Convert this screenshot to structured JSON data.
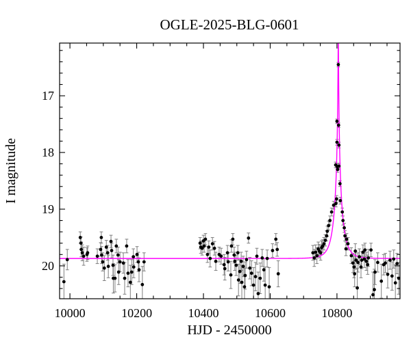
{
  "chart_data": {
    "type": "scatter",
    "title": "OGLE-2025-BLG-0601",
    "xlabel": "HJD - 2450000",
    "ylabel": "I magnitude",
    "x_left": 9969,
    "x_right": 10989,
    "y_top_mag": 16.07,
    "y_bottom_mag": 20.58,
    "y_axis_inverted": true,
    "x_major_ticks": [
      10000,
      10200,
      10400,
      10600,
      10800
    ],
    "x_minor_tick_step": 50,
    "y_major_ticks": [
      17,
      18,
      19,
      20
    ],
    "y_minor_tick_step": 0.2,
    "grid": false,
    "legend": "none",
    "background_color": "#ffffff",
    "frame_color": "#000000",
    "model_curve": {
      "model": "paczynski-point-lens",
      "t0": 10804,
      "tE": 24,
      "u0": 0.028,
      "baseline_mag": 19.87,
      "peak_mag_model": 15.99,
      "color": "#ff00ff"
    },
    "series": [
      {
        "name": "OGLE I-band photometry",
        "marker": "filled-circle",
        "marker_color": "#000000",
        "errorbar_color": "#7d7d7d",
        "points": [
          [
            9982,
            20.28,
            0.31
          ],
          [
            9992,
            19.89,
            0.18
          ],
          [
            10031,
            19.5,
            0.1
          ],
          [
            10033,
            19.6,
            0.11
          ],
          [
            10034,
            19.71,
            0.13
          ],
          [
            10037,
            19.77,
            0.14
          ],
          [
            10041,
            19.83,
            0.16
          ],
          [
            10051,
            19.8,
            0.12
          ],
          [
            10053,
            19.77,
            0.12
          ],
          [
            10082,
            19.83,
            0.13
          ],
          [
            10092,
            19.71,
            0.12
          ],
          [
            10094,
            19.5,
            0.1
          ],
          [
            10095,
            19.81,
            0.15
          ],
          [
            10098,
            19.93,
            0.16
          ],
          [
            10103,
            20.04,
            0.22
          ],
          [
            10109,
            19.67,
            0.12
          ],
          [
            10113,
            19.77,
            0.13
          ],
          [
            10115,
            20.01,
            0.2
          ],
          [
            10123,
            19.57,
            0.11
          ],
          [
            10125,
            19.73,
            0.13
          ],
          [
            10129,
            19.99,
            0.18
          ],
          [
            10130,
            20.22,
            0.26
          ],
          [
            10135,
            20.22,
            0.24
          ],
          [
            10139,
            19.65,
            0.12
          ],
          [
            10144,
            19.81,
            0.14
          ],
          [
            10146,
            20.11,
            0.22
          ],
          [
            10150,
            19.93,
            0.17
          ],
          [
            10160,
            19.95,
            0.18
          ],
          [
            10164,
            20.22,
            0.28
          ],
          [
            10170,
            19.65,
            0.12
          ],
          [
            10174,
            20.13,
            0.24
          ],
          [
            10181,
            20.29,
            0.3
          ],
          [
            10185,
            20.11,
            0.22
          ],
          [
            10190,
            19.84,
            0.14
          ],
          [
            10191,
            20.02,
            0.19
          ],
          [
            10201,
            19.8,
            0.14
          ],
          [
            10205,
            19.93,
            0.17
          ],
          [
            10207,
            20.07,
            0.21
          ],
          [
            10217,
            20.33,
            0.32
          ],
          [
            10222,
            19.93,
            0.16
          ],
          [
            10390,
            19.6,
            0.1
          ],
          [
            10392,
            19.67,
            0.11
          ],
          [
            10396,
            19.69,
            0.12
          ],
          [
            10400,
            19.56,
            0.1
          ],
          [
            10402,
            19.65,
            0.11
          ],
          [
            10406,
            19.53,
            0.1
          ],
          [
            10412,
            19.8,
            0.14
          ],
          [
            10416,
            19.67,
            0.11
          ],
          [
            10420,
            19.87,
            0.15
          ],
          [
            10427,
            19.61,
            0.11
          ],
          [
            10433,
            19.69,
            0.12
          ],
          [
            10437,
            19.92,
            0.16
          ],
          [
            10447,
            19.8,
            0.13
          ],
          [
            10453,
            19.83,
            0.14
          ],
          [
            10462,
            19.98,
            0.18
          ],
          [
            10464,
            20.05,
            0.2
          ],
          [
            10472,
            19.77,
            0.13
          ],
          [
            10474,
            19.93,
            0.16
          ],
          [
            10482,
            20.16,
            0.24
          ],
          [
            10484,
            19.65,
            0.11
          ],
          [
            10488,
            19.53,
            0.1
          ],
          [
            10492,
            19.81,
            0.14
          ],
          [
            10494,
            19.92,
            0.16
          ],
          [
            10498,
            19.99,
            0.18
          ],
          [
            10503,
            19.77,
            0.13
          ],
          [
            10505,
            20.25,
            0.28
          ],
          [
            10509,
            20.1,
            0.21
          ],
          [
            10513,
            19.92,
            0.16
          ],
          [
            10515,
            20.29,
            0.3
          ],
          [
            10519,
            20.01,
            0.18
          ],
          [
            10523,
            20.37,
            0.33
          ],
          [
            10525,
            20.17,
            0.24
          ],
          [
            10529,
            19.89,
            0.15
          ],
          [
            10535,
            19.51,
            0.09
          ],
          [
            10539,
            20.04,
            0.19
          ],
          [
            10544,
            20.13,
            0.22
          ],
          [
            10550,
            20.34,
            0.31
          ],
          [
            10556,
            20.19,
            0.25
          ],
          [
            10560,
            19.83,
            0.14
          ],
          [
            10564,
            20.49,
            0.38
          ],
          [
            10570,
            20.22,
            0.27
          ],
          [
            10576,
            19.86,
            0.15
          ],
          [
            10581,
            20.07,
            0.2
          ],
          [
            10585,
            20.34,
            0.32
          ],
          [
            10591,
            19.87,
            0.15
          ],
          [
            10597,
            20.37,
            0.34
          ],
          [
            10607,
            19.73,
            0.12
          ],
          [
            10617,
            19.53,
            0.1
          ],
          [
            10621,
            19.71,
            0.12
          ],
          [
            10624,
            20.14,
            0.23
          ],
          [
            10728,
            19.77,
            0.13
          ],
          [
            10732,
            19.86,
            0.15
          ],
          [
            10736,
            19.76,
            0.13
          ],
          [
            10740,
            19.82,
            0.14
          ],
          [
            10744,
            19.7,
            0.12
          ],
          [
            10747,
            19.74,
            0.12
          ],
          [
            10751,
            19.77,
            0.13
          ],
          [
            10754,
            19.68,
            0.12
          ],
          [
            10757,
            19.65,
            0.11
          ],
          [
            10761,
            19.61,
            0.11
          ],
          [
            10765,
            19.55,
            0.1
          ],
          [
            10769,
            19.47,
            0.09
          ],
          [
            10771,
            19.39,
            0.09
          ],
          [
            10775,
            19.29,
            0.08
          ],
          [
            10779,
            19.2,
            0.08
          ],
          [
            10784,
            19.05,
            0.07
          ],
          [
            10790,
            18.93,
            0.07
          ],
          [
            10797,
            18.9,
            0.06
          ],
          [
            10796,
            18.22,
            0.05
          ],
          [
            10799,
            18.82,
            0.06
          ],
          [
            10800,
            17.45,
            0.04
          ],
          [
            10800,
            17.82,
            0.05
          ],
          [
            10801,
            18.25,
            0.05
          ],
          [
            10802,
            18.3,
            0.05
          ],
          [
            10804,
            16.45,
            0.04
          ],
          [
            10805,
            17.52,
            0.04
          ],
          [
            10806,
            17.87,
            0.05
          ],
          [
            10806,
            18.24,
            0.05
          ],
          [
            10809,
            18.55,
            0.05
          ],
          [
            10810,
            18.85,
            0.06
          ],
          [
            10816,
            19.05,
            0.07
          ],
          [
            10818,
            19.2,
            0.08
          ],
          [
            10822,
            19.33,
            0.08
          ],
          [
            10824,
            19.47,
            0.09
          ],
          [
            10827,
            19.7,
            0.12
          ],
          [
            10829,
            19.53,
            0.1
          ],
          [
            10833,
            19.61,
            0.11
          ],
          [
            10843,
            19.82,
            0.14
          ],
          [
            10848,
            19.95,
            0.17
          ],
          [
            10851,
            20.02,
            0.19
          ],
          [
            10853,
            20.14,
            0.23
          ],
          [
            10855,
            19.74,
            0.13
          ],
          [
            10857,
            19.9,
            0.16
          ],
          [
            10861,
            20.39,
            0.35
          ],
          [
            10863,
            19.94,
            0.17
          ],
          [
            10867,
            19.84,
            0.14
          ],
          [
            10872,
            20.02,
            0.19
          ],
          [
            10874,
            19.9,
            0.15
          ],
          [
            10878,
            19.76,
            0.13
          ],
          [
            10882,
            19.88,
            0.15
          ],
          [
            10884,
            19.72,
            0.12
          ],
          [
            10888,
            19.92,
            0.16
          ],
          [
            10892,
            19.98,
            0.17
          ],
          [
            10894,
            19.86,
            0.15
          ],
          [
            10902,
            19.72,
            0.12
          ],
          [
            10908,
            20.51,
            0.4
          ],
          [
            10912,
            20.42,
            0.36
          ],
          [
            10914,
            20.11,
            0.22
          ],
          [
            10922,
            19.94,
            0.17
          ],
          [
            10933,
            20.27,
            0.3
          ],
          [
            10940,
            19.98,
            0.18
          ],
          [
            10945,
            19.95,
            0.17
          ],
          [
            10952,
            20.15,
            0.24
          ],
          [
            10959,
            19.9,
            0.16
          ],
          [
            10965,
            20.18,
            0.25
          ],
          [
            10970,
            19.88,
            0.16
          ],
          [
            10975,
            20.3,
            0.32
          ],
          [
            10980,
            19.96,
            0.18
          ],
          [
            10985,
            20.22,
            0.28
          ]
        ]
      }
    ]
  }
}
